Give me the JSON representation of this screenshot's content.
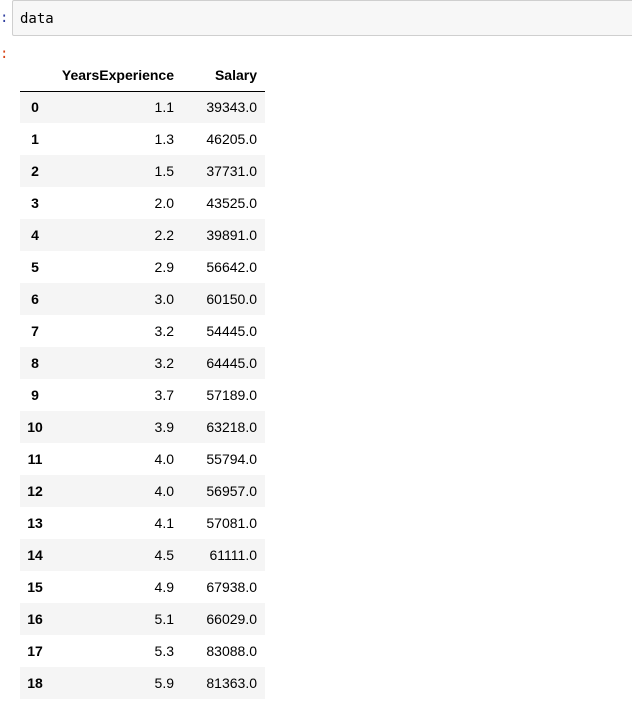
{
  "input_cell": {
    "prompt": ":",
    "code": "data"
  },
  "output_cell": {
    "prompt": ":"
  },
  "table": {
    "columns": [
      "YearsExperience",
      "Salary"
    ],
    "rows": [
      {
        "index": "0",
        "years": "1.1",
        "salary": "39343.0"
      },
      {
        "index": "1",
        "years": "1.3",
        "salary": "46205.0"
      },
      {
        "index": "2",
        "years": "1.5",
        "salary": "37731.0"
      },
      {
        "index": "3",
        "years": "2.0",
        "salary": "43525.0"
      },
      {
        "index": "4",
        "years": "2.2",
        "salary": "39891.0"
      },
      {
        "index": "5",
        "years": "2.9",
        "salary": "56642.0"
      },
      {
        "index": "6",
        "years": "3.0",
        "salary": "60150.0"
      },
      {
        "index": "7",
        "years": "3.2",
        "salary": "54445.0"
      },
      {
        "index": "8",
        "years": "3.2",
        "salary": "64445.0"
      },
      {
        "index": "9",
        "years": "3.7",
        "salary": "57189.0"
      },
      {
        "index": "10",
        "years": "3.9",
        "salary": "63218.0"
      },
      {
        "index": "11",
        "years": "4.0",
        "salary": "55794.0"
      },
      {
        "index": "12",
        "years": "4.0",
        "salary": "56957.0"
      },
      {
        "index": "13",
        "years": "4.1",
        "salary": "57081.0"
      },
      {
        "index": "14",
        "years": "4.5",
        "salary": "61111.0"
      },
      {
        "index": "15",
        "years": "4.9",
        "salary": "67938.0"
      },
      {
        "index": "16",
        "years": "5.1",
        "salary": "66029.0"
      },
      {
        "index": "17",
        "years": "5.3",
        "salary": "83088.0"
      },
      {
        "index": "18",
        "years": "5.9",
        "salary": "81363.0"
      }
    ]
  }
}
